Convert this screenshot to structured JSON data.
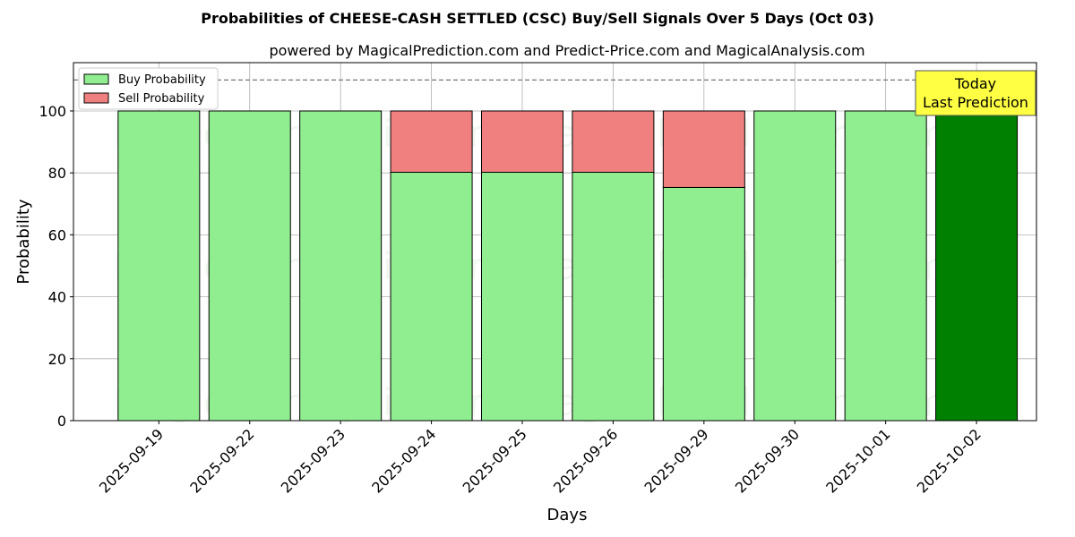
{
  "chart_data": {
    "type": "bar",
    "stacked": true,
    "title": "Probabilities of CHEESE-CASH SETTLED (CSC) Buy/Sell Signals Over 5 Days (Oct 03)",
    "subtitle": "powered by MagicalPrediction.com and Predict-Price.com and MagicalAnalysis.com",
    "xlabel": "Days",
    "ylabel": "Probability",
    "ylim": [
      0,
      115.6
    ],
    "yticks": [
      0,
      20,
      40,
      60,
      80,
      100
    ],
    "grid": true,
    "legend_position": "top-left",
    "categories": [
      "2025-09-19",
      "2025-09-22",
      "2025-09-23",
      "2025-09-24",
      "2025-09-25",
      "2025-09-26",
      "2025-09-29",
      "2025-09-30",
      "2025-10-01",
      "2025-10-02"
    ],
    "series": [
      {
        "name": "Buy Probability",
        "color": "#90ee90",
        "values": [
          100,
          100,
          100,
          80.2,
          80.2,
          80.2,
          75.3,
          100,
          100,
          100
        ]
      },
      {
        "name": "Sell Probability",
        "color": "#f08080",
        "values": [
          0,
          0,
          0,
          19.8,
          19.8,
          19.8,
          24.7,
          0,
          0,
          0
        ]
      }
    ],
    "highlight": {
      "index": 9,
      "color": "#008000"
    },
    "reference_line": {
      "value": 110,
      "style": "dashed"
    },
    "annotation": {
      "lines": [
        "Today",
        "Last Prediction"
      ],
      "color": "#ffff44"
    },
    "watermarks": [
      "MagicalAnalysis.com",
      "MagicalPrediction.com"
    ]
  }
}
